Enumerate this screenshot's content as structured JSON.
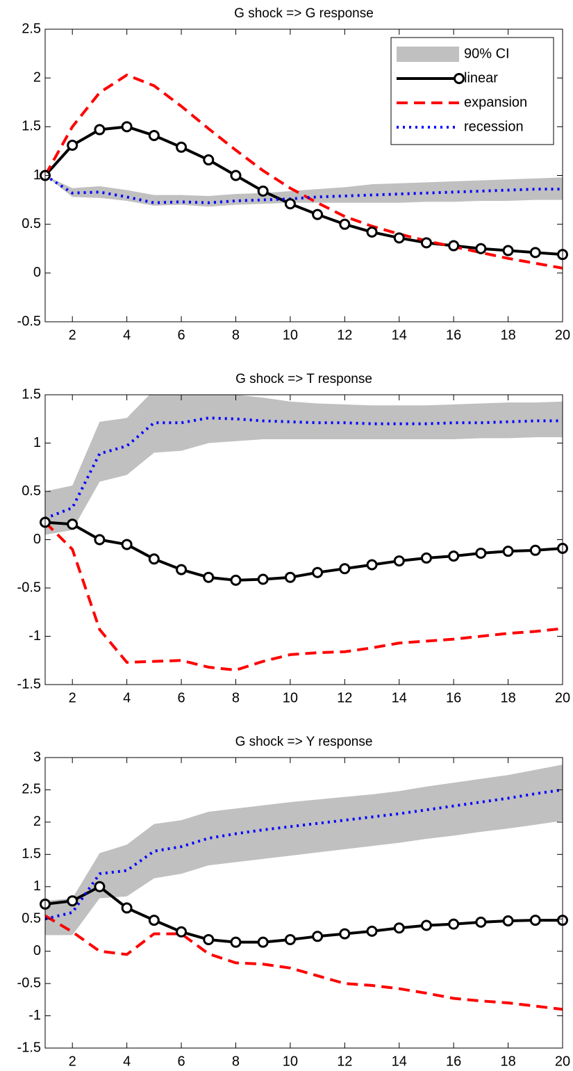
{
  "chart_data": [
    {
      "type": "line",
      "title": "G shock => G response",
      "x": [
        1,
        2,
        3,
        4,
        5,
        6,
        7,
        8,
        9,
        10,
        11,
        12,
        13,
        14,
        15,
        16,
        17,
        18,
        19,
        20
      ],
      "xlim": [
        1,
        20
      ],
      "xticks": [
        2,
        4,
        6,
        8,
        10,
        12,
        14,
        16,
        18,
        20
      ],
      "ylim": [
        -0.5,
        2.5
      ],
      "yticks": [
        -0.5,
        0,
        0.5,
        1,
        1.5,
        2,
        2.5
      ],
      "legend": "upper right",
      "series": [
        {
          "name": "90% CI",
          "color": "#c0c0c0",
          "style": "band",
          "lower": [
            1,
            0.78,
            0.77,
            0.74,
            0.69,
            0.7,
            0.68,
            0.7,
            0.71,
            0.72,
            0.72,
            0.72,
            0.72,
            0.72,
            0.73,
            0.73,
            0.74,
            0.74,
            0.75,
            0.75
          ],
          "upper": [
            1,
            0.87,
            0.89,
            0.85,
            0.8,
            0.8,
            0.79,
            0.81,
            0.82,
            0.84,
            0.86,
            0.88,
            0.91,
            0.92,
            0.93,
            0.94,
            0.95,
            0.96,
            0.97,
            0.98
          ]
        },
        {
          "name": "linear",
          "color": "#000000",
          "style": "solid",
          "marker": "circle",
          "values": [
            1,
            1.31,
            1.47,
            1.5,
            1.41,
            1.29,
            1.16,
            1.0,
            0.84,
            0.71,
            0.6,
            0.5,
            0.42,
            0.36,
            0.31,
            0.28,
            0.25,
            0.23,
            0.21,
            0.19
          ]
        },
        {
          "name": "expansion",
          "color": "#ff0000",
          "style": "dashed",
          "values": [
            1,
            1.5,
            1.85,
            2.03,
            1.92,
            1.71,
            1.48,
            1.26,
            1.05,
            0.87,
            0.72,
            0.58,
            0.48,
            0.4,
            0.33,
            0.27,
            0.21,
            0.15,
            0.1,
            0.05
          ]
        },
        {
          "name": "recession",
          "color": "#0000ff",
          "style": "dotted",
          "values": [
            1,
            0.82,
            0.83,
            0.78,
            0.72,
            0.73,
            0.72,
            0.74,
            0.75,
            0.76,
            0.78,
            0.79,
            0.8,
            0.81,
            0.82,
            0.83,
            0.84,
            0.85,
            0.86,
            0.86
          ]
        }
      ]
    },
    {
      "type": "line",
      "title": "G shock => T response",
      "x": [
        1,
        2,
        3,
        4,
        5,
        6,
        7,
        8,
        9,
        10,
        11,
        12,
        13,
        14,
        15,
        16,
        17,
        18,
        19,
        20
      ],
      "xlim": [
        1,
        20
      ],
      "xticks": [
        2,
        4,
        6,
        8,
        10,
        12,
        14,
        16,
        18,
        20
      ],
      "ylim": [
        -1.5,
        1.5
      ],
      "yticks": [
        -1.5,
        -1,
        -0.5,
        0,
        0.5,
        1,
        1.5
      ],
      "series": [
        {
          "color": "#c0c0c0",
          "style": "band",
          "lower": [
            0.05,
            0.1,
            0.6,
            0.67,
            0.9,
            0.92,
            1.0,
            1.02,
            1.04,
            1.04,
            1.04,
            1.04,
            1.04,
            1.04,
            1.04,
            1.04,
            1.05,
            1.05,
            1.06,
            1.06
          ],
          "upper": [
            0.5,
            0.56,
            1.22,
            1.26,
            1.55,
            1.56,
            1.53,
            1.5,
            1.47,
            1.43,
            1.41,
            1.4,
            1.39,
            1.39,
            1.39,
            1.4,
            1.41,
            1.42,
            1.42,
            1.43
          ]
        },
        {
          "color": "#000000",
          "style": "solid",
          "marker": "circle",
          "values": [
            0.18,
            0.16,
            0.0,
            -0.05,
            -0.2,
            -0.31,
            -0.39,
            -0.42,
            -0.41,
            -0.39,
            -0.34,
            -0.3,
            -0.26,
            -0.22,
            -0.19,
            -0.17,
            -0.14,
            -0.12,
            -0.11,
            -0.09
          ]
        },
        {
          "color": "#ff0000",
          "style": "dashed",
          "values": [
            0.18,
            -0.1,
            -0.93,
            -1.27,
            -1.26,
            -1.25,
            -1.32,
            -1.35,
            -1.26,
            -1.19,
            -1.17,
            -1.16,
            -1.12,
            -1.07,
            -1.05,
            -1.03,
            -1.0,
            -0.97,
            -0.95,
            -0.92
          ]
        },
        {
          "color": "#0000ff",
          "style": "dotted",
          "values": [
            0.22,
            0.33,
            0.89,
            0.97,
            1.21,
            1.21,
            1.26,
            1.25,
            1.23,
            1.22,
            1.21,
            1.21,
            1.2,
            1.2,
            1.2,
            1.21,
            1.21,
            1.22,
            1.23,
            1.23
          ]
        }
      ]
    },
    {
      "type": "line",
      "title": "G shock => Y response",
      "x": [
        1,
        2,
        3,
        4,
        5,
        6,
        7,
        8,
        9,
        10,
        11,
        12,
        13,
        14,
        15,
        16,
        17,
        18,
        19,
        20
      ],
      "xlim": [
        1,
        20
      ],
      "xticks": [
        2,
        4,
        6,
        8,
        10,
        12,
        14,
        16,
        18,
        20
      ],
      "ylim": [
        -1.5,
        3
      ],
      "yticks": [
        -1.5,
        -1,
        -0.5,
        0,
        0.5,
        1,
        1.5,
        2,
        2.5,
        3
      ],
      "series": [
        {
          "color": "#c0c0c0",
          "style": "band",
          "lower": [
            0.25,
            0.25,
            0.82,
            0.85,
            1.13,
            1.2,
            1.33,
            1.38,
            1.43,
            1.48,
            1.53,
            1.58,
            1.63,
            1.68,
            1.74,
            1.79,
            1.85,
            1.9,
            1.96,
            2.02
          ],
          "upper": [
            0.78,
            0.82,
            1.52,
            1.65,
            1.97,
            2.03,
            2.16,
            2.21,
            2.26,
            2.31,
            2.35,
            2.39,
            2.43,
            2.48,
            2.55,
            2.61,
            2.67,
            2.73,
            2.81,
            2.89
          ]
        },
        {
          "color": "#000000",
          "style": "solid",
          "marker": "circle",
          "values": [
            0.73,
            0.78,
            1.0,
            0.67,
            0.48,
            0.3,
            0.18,
            0.14,
            0.14,
            0.18,
            0.23,
            0.27,
            0.31,
            0.36,
            0.4,
            0.42,
            0.45,
            0.47,
            0.48,
            0.48
          ]
        },
        {
          "color": "#ff0000",
          "style": "dashed",
          "values": [
            0.55,
            0.3,
            0.0,
            -0.05,
            0.27,
            0.27,
            -0.04,
            -0.18,
            -0.2,
            -0.26,
            -0.38,
            -0.5,
            -0.53,
            -0.58,
            -0.65,
            -0.73,
            -0.77,
            -0.8,
            -0.85,
            -0.9
          ]
        },
        {
          "color": "#0000ff",
          "style": "dotted",
          "values": [
            0.5,
            0.6,
            1.2,
            1.25,
            1.55,
            1.62,
            1.75,
            1.82,
            1.88,
            1.93,
            1.98,
            2.03,
            2.08,
            2.13,
            2.19,
            2.25,
            2.31,
            2.37,
            2.44,
            2.5
          ]
        }
      ]
    }
  ]
}
